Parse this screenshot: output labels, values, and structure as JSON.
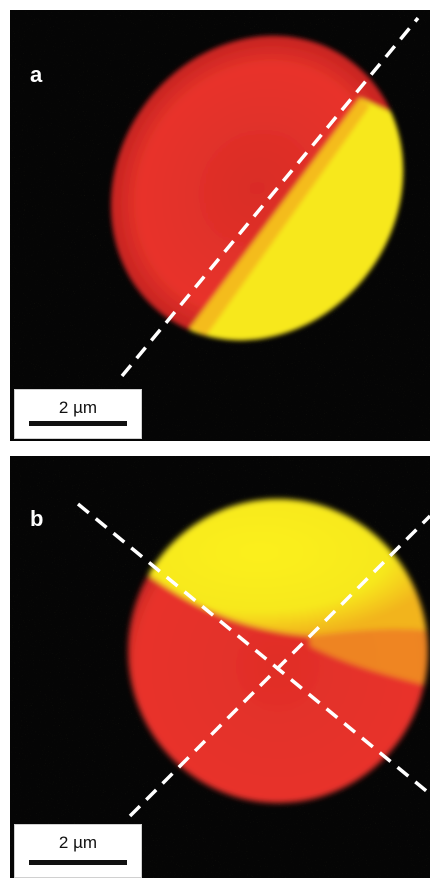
{
  "panels": [
    {
      "letter": "a",
      "scale_bar": {
        "label": "2 µm"
      },
      "dashed_lines": 1,
      "colors": {
        "primary_region": "#e8332a",
        "secondary_region": "#f7e81a",
        "background": "#050505",
        "dash": "#ffffff"
      }
    },
    {
      "letter": "b",
      "scale_bar": {
        "label": "2 µm"
      },
      "dashed_lines": 2,
      "colors": {
        "primary_region": "#e8332a",
        "secondary_region": "#f7e81a",
        "background": "#050505",
        "dash": "#ffffff"
      }
    }
  ]
}
